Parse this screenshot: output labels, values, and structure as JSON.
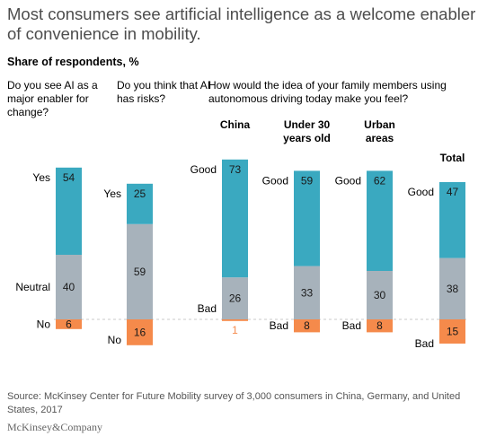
{
  "header": {
    "title": "Most consumers see artificial intelligence as a welcome enabler of convenience in mobility.",
    "subtitle": "Share of respondents, %"
  },
  "questions": {
    "q1": "Do you see AI as a major enabler for change?",
    "q2": "Do you think that AI has risks?",
    "q3": "How would the idea of your family members using autonomous driving today make you feel?"
  },
  "footer": {
    "source": "Source: McKinsey Center for Future Mobility survey of 3,000 consumers in China, Germany, and United States, 2017",
    "brand": "McKinsey&Company"
  },
  "colors": {
    "positive": "#3aa9c0",
    "neutral": "#a7b2bb",
    "negative": "#f58a4b",
    "baseline": "#c8c8c8"
  },
  "chart_data": {
    "type": "bar",
    "stacked": true,
    "baseline": "dashed line at the boundary between the neutral and negative segments",
    "bars": [
      {
        "category": "",
        "segments": [
          {
            "label": "Yes",
            "value": 54,
            "kind": "positive"
          },
          {
            "label": "Neutral",
            "value": 40,
            "kind": "neutral"
          },
          {
            "label": "No",
            "value": 6,
            "kind": "negative"
          }
        ]
      },
      {
        "category": "",
        "segments": [
          {
            "label": "Yes",
            "value": 25,
            "kind": "positive"
          },
          {
            "label": "",
            "value": 59,
            "kind": "neutral"
          },
          {
            "label": "No",
            "value": 16,
            "kind": "negative"
          }
        ]
      },
      {
        "category": "China",
        "segments": [
          {
            "label": "Good",
            "value": 73,
            "kind": "positive"
          },
          {
            "label": "",
            "value": 26,
            "kind": "neutral"
          },
          {
            "label": "Bad",
            "value": 1,
            "kind": "negative"
          }
        ]
      },
      {
        "category": "Under 30 years old",
        "segments": [
          {
            "label": "Good",
            "value": 59,
            "kind": "positive"
          },
          {
            "label": "",
            "value": 33,
            "kind": "neutral"
          },
          {
            "label": "Bad",
            "value": 8,
            "kind": "negative"
          }
        ]
      },
      {
        "category": "Urban areas",
        "segments": [
          {
            "label": "Good",
            "value": 62,
            "kind": "positive"
          },
          {
            "label": "",
            "value": 30,
            "kind": "neutral"
          },
          {
            "label": "Bad",
            "value": 8,
            "kind": "negative"
          }
        ]
      },
      {
        "category": "Total",
        "segments": [
          {
            "label": "Good",
            "value": 47,
            "kind": "positive"
          },
          {
            "label": "",
            "value": 38,
            "kind": "neutral"
          },
          {
            "label": "Bad",
            "value": 15,
            "kind": "negative"
          }
        ]
      }
    ]
  }
}
